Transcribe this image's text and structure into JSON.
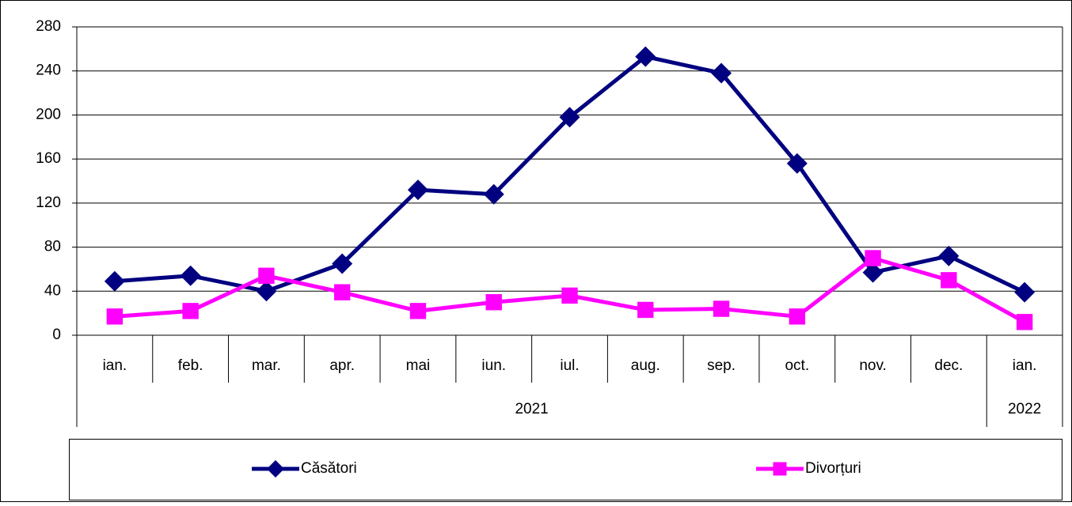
{
  "chart_data": {
    "type": "line",
    "categories": [
      "ian.",
      "feb.",
      "mar.",
      "apr.",
      "mai",
      "iun.",
      "iul.",
      "aug.",
      "sep.",
      "oct.",
      "nov.",
      "dec.",
      "ian."
    ],
    "years": [
      "2021",
      "2021",
      "2021",
      "2021",
      "2021",
      "2021",
      "2021",
      "2021",
      "2021",
      "2021",
      "2021",
      "2021",
      "2022"
    ],
    "series": [
      {
        "name": "Căsători",
        "color": "#000080",
        "marker": "diamond",
        "values": [
          49,
          54,
          40,
          65,
          132,
          128,
          198,
          253,
          238,
          156,
          57,
          72,
          39
        ]
      },
      {
        "name": "Divorțuri",
        "color": "#ff00ff",
        "marker": "square",
        "values": [
          17,
          22,
          54,
          39,
          22,
          30,
          36,
          23,
          24,
          17,
          70,
          50,
          12
        ]
      }
    ],
    "ylim": [
      0,
      280
    ],
    "yticks": [
      0,
      40,
      80,
      120,
      160,
      200,
      240,
      280
    ],
    "grid": true,
    "legend": "bottom"
  }
}
